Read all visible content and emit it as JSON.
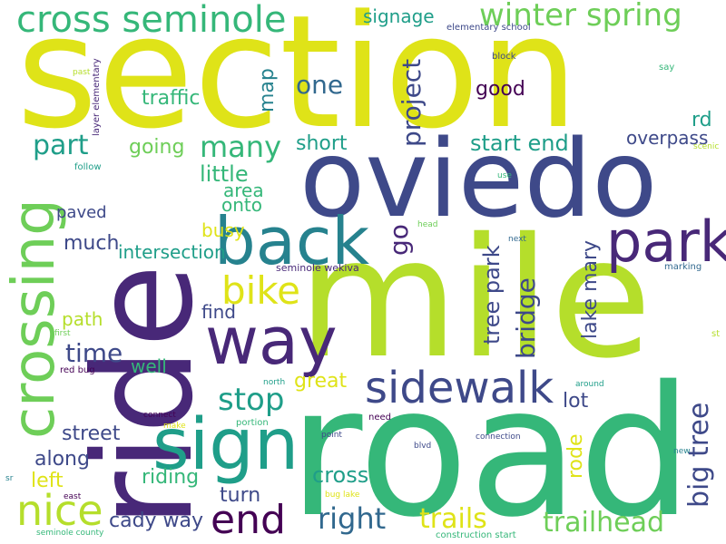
{
  "colors": {
    "c1": "#dfe318",
    "c2": "#b5de2b",
    "c3": "#6ece58",
    "c4": "#35b779",
    "c5": "#1f9e89",
    "c6": "#26828e",
    "c7": "#31688e",
    "c8": "#3e4989",
    "c9": "#482878",
    "c10": "#440154"
  },
  "words": {
    "section": "section",
    "mile": "mile",
    "road": "road",
    "ride": "ride",
    "oviedo": "oviedo",
    "crossing": "crossing",
    "back": "back",
    "park": "park",
    "way": "way",
    "sign": "sign",
    "sidewalk": "sidewalk",
    "nice": "nice",
    "end": "end",
    "cross_seminole": "cross seminole",
    "winter_spring": "winter spring",
    "bike": "bike",
    "stop": "stop",
    "right": "right",
    "trailhead": "trailhead",
    "trails": "trails",
    "big_tree": "big tree",
    "part": "part",
    "many": "many",
    "one": "one",
    "project": "project",
    "map": "map",
    "traffic": "traffic",
    "signage": "signage",
    "good": "good",
    "rd": "rd",
    "overpass": "overpass",
    "start_end": "start end",
    "short": "short",
    "going": "going",
    "little": "little",
    "area": "area",
    "onto": "onto",
    "paved": "paved",
    "much": "much",
    "intersection": "intersection",
    "busy": "busy",
    "go": "go",
    "tree_park": "tree park",
    "bridge": "bridge",
    "lake_mary": "lake mary",
    "path": "path",
    "find": "find",
    "time": "time",
    "well": "well",
    "great": "great",
    "lot": "lot",
    "street": "street",
    "along": "along",
    "left": "left",
    "riding": "riding",
    "turn": "turn",
    "cady_way": "cady way",
    "cross": "cross",
    "rode": "rode",
    "seminole_wekiva": "seminole wekiva",
    "elementary_school": "elementary school",
    "block": "block",
    "layer_elementary": "layer elementary",
    "past": "past",
    "say": "say",
    "scenic": "scenic",
    "follow": "follow",
    "use": "use",
    "head": "head",
    "next": "next",
    "marking": "marking",
    "first": "first",
    "st": "st",
    "red_bug": "red bug",
    "north": "north",
    "around": "around",
    "connect": "connect",
    "make": "make",
    "portion": "portion",
    "need": "need",
    "point": "point",
    "blvd": "blvd",
    "connection": "connection",
    "new": "new",
    "sr": "sr",
    "east": "east",
    "bug_lake": "bug lake",
    "seminole_county": "seminole county",
    "construction_start": "construction start"
  }
}
